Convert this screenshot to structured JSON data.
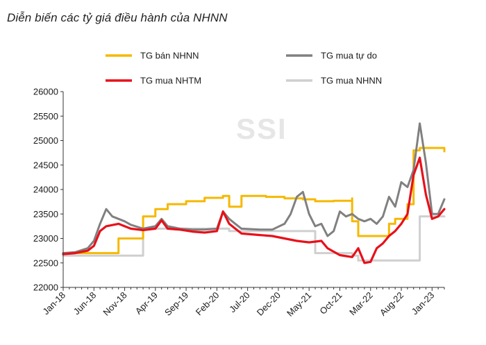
{
  "title": "Diễn biến các tỷ giá điều hành của NHNN",
  "watermark": "SSI",
  "chart_data": {
    "type": "line",
    "title": "Diễn biến các tỷ giá điều hành của NHNN",
    "xlabel": "",
    "ylabel": "",
    "ylim": [
      22000,
      26000
    ],
    "yticks": [
      22000,
      22500,
      23000,
      23500,
      24000,
      24500,
      25000,
      25500,
      26000
    ],
    "xlim": [
      "2018-01",
      "2023-03"
    ],
    "xticks": [
      "Jan-18",
      "Jun-18",
      "Nov-18",
      "Apr-19",
      "Sep-19",
      "Feb-20",
      "Jul-20",
      "Dec-20",
      "May-21",
      "Oct-21",
      "Mar-22",
      "Aug-22",
      "Jan-23"
    ],
    "grid": false,
    "legend_position": "top",
    "series": [
      {
        "name": "TG bán NHNN",
        "color": "#F5B800",
        "step": true,
        "points": [
          [
            "2018-01",
            22700
          ],
          [
            "2018-10",
            22700
          ],
          [
            "2018-10",
            23000
          ],
          [
            "2019-01",
            23000
          ],
          [
            "2019-02",
            23450
          ],
          [
            "2019-04",
            23600
          ],
          [
            "2019-06",
            23700
          ],
          [
            "2019-09",
            23760
          ],
          [
            "2019-12",
            23830
          ],
          [
            "2020-03",
            23870
          ],
          [
            "2020-04",
            23650
          ],
          [
            "2020-06",
            23650
          ],
          [
            "2020-06",
            23870
          ],
          [
            "2020-10",
            23850
          ],
          [
            "2021-01",
            23820
          ],
          [
            "2021-04",
            23800
          ],
          [
            "2021-06",
            23760
          ],
          [
            "2021-09",
            23770
          ],
          [
            "2021-12",
            23820
          ],
          [
            "2021-12",
            23350
          ],
          [
            "2022-01",
            23050
          ],
          [
            "2022-06",
            23050
          ],
          [
            "2022-06",
            23300
          ],
          [
            "2022-07",
            23400
          ],
          [
            "2022-08",
            23400
          ],
          [
            "2022-09",
            23700
          ],
          [
            "2022-10",
            24800
          ],
          [
            "2022-11",
            24850
          ],
          [
            "2023-03",
            24780
          ]
        ]
      },
      {
        "name": "TG mua tự do",
        "color": "#808080",
        "points": [
          [
            "2018-01",
            22700
          ],
          [
            "2018-03",
            22720
          ],
          [
            "2018-05",
            22800
          ],
          [
            "2018-06",
            22950
          ],
          [
            "2018-07",
            23300
          ],
          [
            "2018-08",
            23600
          ],
          [
            "2018-09",
            23450
          ],
          [
            "2018-10",
            23400
          ],
          [
            "2018-11",
            23350
          ],
          [
            "2018-12",
            23280
          ],
          [
            "2019-02",
            23200
          ],
          [
            "2019-04",
            23250
          ],
          [
            "2019-05",
            23400
          ],
          [
            "2019-06",
            23250
          ],
          [
            "2019-08",
            23200
          ],
          [
            "2019-10",
            23180
          ],
          [
            "2019-12",
            23180
          ],
          [
            "2020-02",
            23200
          ],
          [
            "2020-03",
            23550
          ],
          [
            "2020-04",
            23400
          ],
          [
            "2020-05",
            23300
          ],
          [
            "2020-06",
            23200
          ],
          [
            "2020-09",
            23180
          ],
          [
            "2020-11",
            23180
          ],
          [
            "2021-01",
            23300
          ],
          [
            "2021-02",
            23500
          ],
          [
            "2021-03",
            23850
          ],
          [
            "2021-04",
            23950
          ],
          [
            "2021-05",
            23500
          ],
          [
            "2021-06",
            23250
          ],
          [
            "2021-07",
            23300
          ],
          [
            "2021-08",
            23050
          ],
          [
            "2021-09",
            23150
          ],
          [
            "2021-10",
            23550
          ],
          [
            "2021-11",
            23450
          ],
          [
            "2021-12",
            23500
          ],
          [
            "2022-01",
            23400
          ],
          [
            "2022-02",
            23350
          ],
          [
            "2022-03",
            23400
          ],
          [
            "2022-04",
            23300
          ],
          [
            "2022-05",
            23450
          ],
          [
            "2022-06",
            23850
          ],
          [
            "2022-07",
            23650
          ],
          [
            "2022-08",
            24150
          ],
          [
            "2022-09",
            24050
          ],
          [
            "2022-10",
            24400
          ],
          [
            "2022-11",
            25350
          ],
          [
            "2022-12",
            24550
          ],
          [
            "2023-01",
            23500
          ],
          [
            "2023-02",
            23500
          ],
          [
            "2023-03",
            23800
          ]
        ]
      },
      {
        "name": "TG mua NHTM",
        "color": "#E8101A",
        "points": [
          [
            "2018-01",
            22680
          ],
          [
            "2018-03",
            22700
          ],
          [
            "2018-05",
            22750
          ],
          [
            "2018-06",
            22850
          ],
          [
            "2018-07",
            23150
          ],
          [
            "2018-08",
            23250
          ],
          [
            "2018-10",
            23300
          ],
          [
            "2018-11",
            23250
          ],
          [
            "2018-12",
            23200
          ],
          [
            "2019-02",
            23170
          ],
          [
            "2019-04",
            23200
          ],
          [
            "2019-05",
            23370
          ],
          [
            "2019-06",
            23200
          ],
          [
            "2019-08",
            23180
          ],
          [
            "2019-10",
            23140
          ],
          [
            "2019-12",
            23120
          ],
          [
            "2020-02",
            23150
          ],
          [
            "2020-03",
            23550
          ],
          [
            "2020-04",
            23300
          ],
          [
            "2020-05",
            23200
          ],
          [
            "2020-06",
            23100
          ],
          [
            "2020-09",
            23070
          ],
          [
            "2020-11",
            23050
          ],
          [
            "2021-01",
            23000
          ],
          [
            "2021-03",
            22950
          ],
          [
            "2021-05",
            22920
          ],
          [
            "2021-07",
            22950
          ],
          [
            "2021-08",
            22800
          ],
          [
            "2021-10",
            22660
          ],
          [
            "2021-12",
            22620
          ],
          [
            "2022-01",
            22800
          ],
          [
            "2022-02",
            22500
          ],
          [
            "2022-03",
            22520
          ],
          [
            "2022-04",
            22800
          ],
          [
            "2022-05",
            22900
          ],
          [
            "2022-06",
            23050
          ],
          [
            "2022-07",
            23150
          ],
          [
            "2022-08",
            23300
          ],
          [
            "2022-09",
            23500
          ],
          [
            "2022-10",
            24300
          ],
          [
            "2022-11",
            24650
          ],
          [
            "2022-12",
            23900
          ],
          [
            "2023-01",
            23400
          ],
          [
            "2023-02",
            23450
          ],
          [
            "2023-03",
            23600
          ]
        ]
      },
      {
        "name": "TG mua NHNN",
        "color": "#CFCFCF",
        "step": true,
        "points": [
          [
            "2018-01",
            22650
          ],
          [
            "2019-02",
            22650
          ],
          [
            "2019-02",
            23200
          ],
          [
            "2020-03",
            23200
          ],
          [
            "2020-04",
            23150
          ],
          [
            "2021-01",
            23150
          ],
          [
            "2021-06",
            23150
          ],
          [
            "2021-06",
            22700
          ],
          [
            "2021-12",
            22650
          ],
          [
            "2022-01",
            22550
          ],
          [
            "2022-11",
            22550
          ],
          [
            "2022-11",
            23450
          ],
          [
            "2023-03",
            23450
          ]
        ]
      }
    ]
  }
}
